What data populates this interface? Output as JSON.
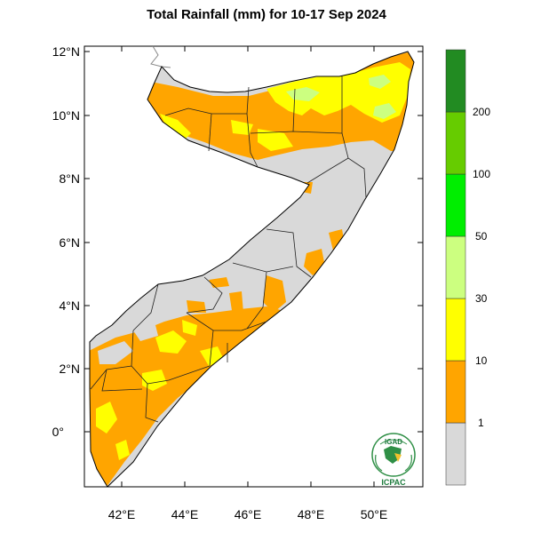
{
  "title": "Total Rainfall (mm) for 10-17 Sep 2024",
  "map": {
    "lat_ticks": [
      "12°N",
      "10°N",
      "8°N",
      "6°N",
      "4°N",
      "2°N",
      "0°"
    ],
    "lon_ticks": [
      "42°E",
      "44°E",
      "46°E",
      "48°E",
      "50°E"
    ]
  },
  "legend": {
    "bins": [
      {
        "label": "",
        "color": "#d9d9d9"
      },
      {
        "label": "1",
        "color": "#ffa500"
      },
      {
        "label": "10",
        "color": "#ffff00"
      },
      {
        "label": "30",
        "color": "#ccff80"
      },
      {
        "label": "50",
        "color": "#00ee00"
      },
      {
        "label": "100",
        "color": "#66cc00"
      },
      {
        "label": "200",
        "color": "#228b22"
      }
    ]
  },
  "logo": {
    "top_text": "IGAD",
    "bottom_text": "ICPAC"
  }
}
